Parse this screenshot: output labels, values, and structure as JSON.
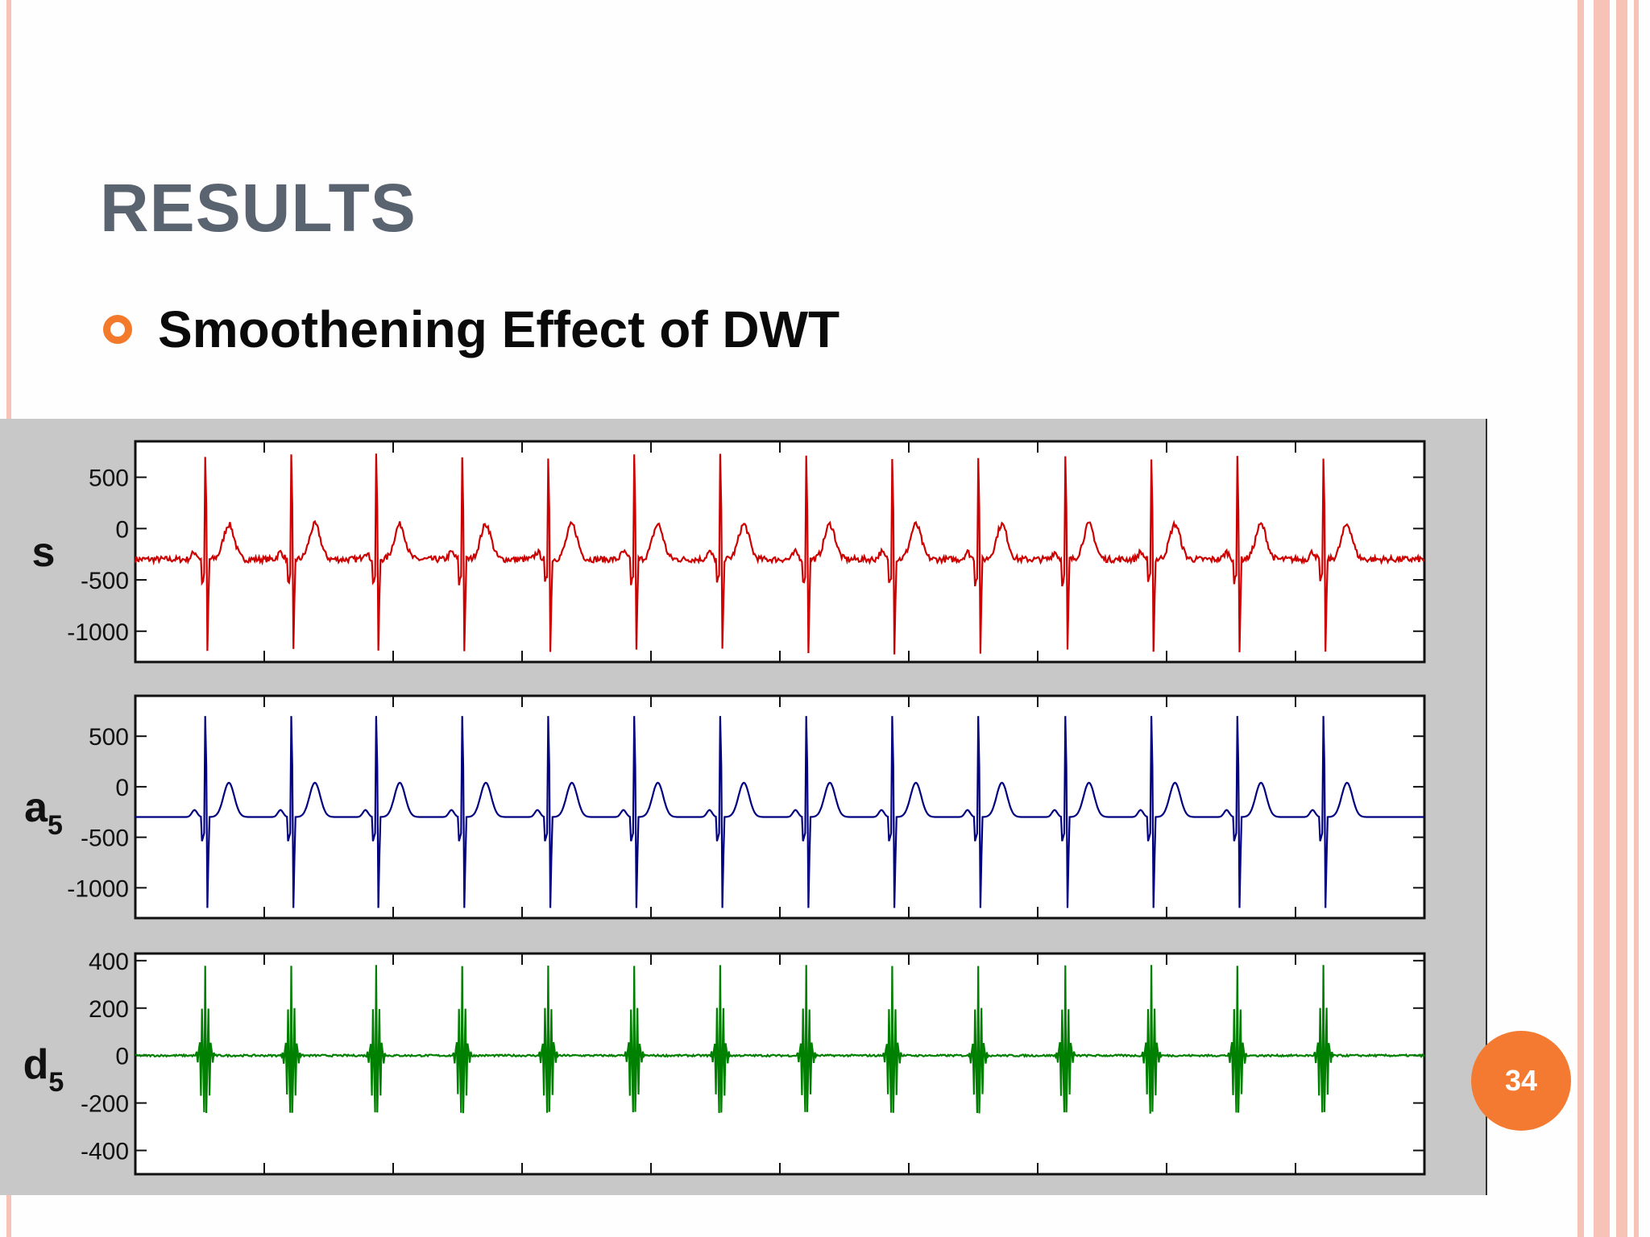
{
  "slide": {
    "title": "RESULTS",
    "bullet": "Smoothening Effect of DWT",
    "page_number": "34",
    "colors": {
      "title": "#5a6370",
      "bullet": "#f27a2a",
      "border": "#f4b7a8",
      "badge": "#f47a32"
    }
  },
  "chart_data": [
    {
      "type": "line",
      "ylabel": "s",
      "ylim": [
        -1300,
        850
      ],
      "yticks": [
        500,
        0,
        -500,
        -1000
      ],
      "series": [
        {
          "color": "#cc0000",
          "peaks_x": [
            65,
            145,
            224,
            304,
            384,
            464,
            544,
            624,
            704,
            784,
            865,
            945,
            1025,
            1105
          ],
          "noise": true
        }
      ]
    },
    {
      "type": "line",
      "ylabel": "a5",
      "ylim": [
        -1300,
        900
      ],
      "yticks": [
        500,
        0,
        -500,
        -1000
      ],
      "series": [
        {
          "color": "#000080",
          "peaks_x": [
            65,
            145,
            224,
            304,
            384,
            464,
            544,
            624,
            704,
            784,
            865,
            945,
            1025,
            1105
          ],
          "noise": false
        }
      ]
    },
    {
      "type": "line",
      "ylabel": "d5",
      "ylim": [
        -500,
        430
      ],
      "yticks": [
        400,
        200,
        0,
        -200,
        -400
      ],
      "series": [
        {
          "color": "#008000",
          "peaks_x": [
            65,
            145,
            224,
            304,
            384,
            464,
            544,
            624,
            704,
            784,
            865,
            945,
            1025,
            1105
          ],
          "noise": false
        }
      ]
    }
  ]
}
